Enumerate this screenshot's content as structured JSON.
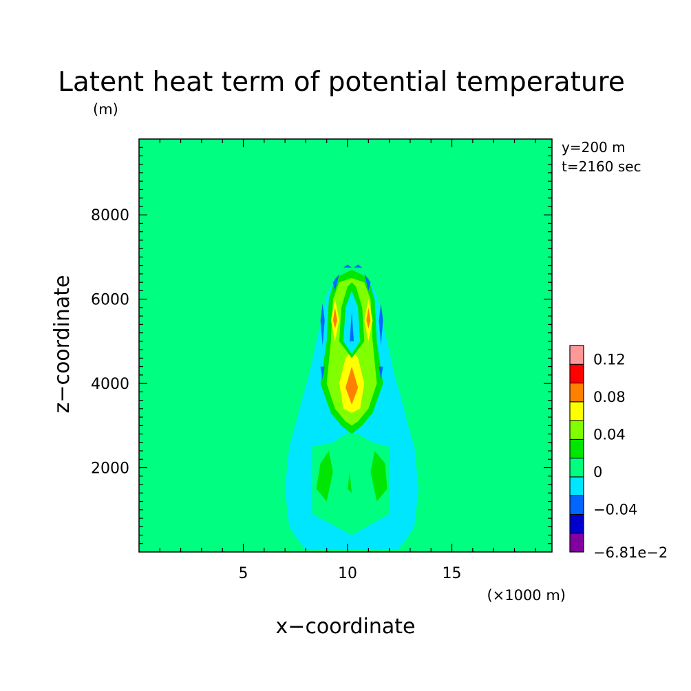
{
  "chart_data": {
    "type": "heatmap",
    "title": "Latent heat term of potential temperature",
    "y_unit": "(m)",
    "xlabel": "x−coordinate",
    "ylabel": "z−coordinate",
    "x_unit": "(×1000 m)",
    "annotations": [
      "y=200 m",
      "t=2160 sec"
    ],
    "xlim": [
      0,
      19.8
    ],
    "ylim": [
      0,
      9800
    ],
    "x_ticks": [
      5,
      10,
      15
    ],
    "x_tick_labels": [
      "5",
      "10",
      "15"
    ],
    "y_ticks": [
      2000,
      4000,
      6000,
      8000
    ],
    "y_tick_labels": [
      "2000",
      "4000",
      "6000",
      "8000"
    ],
    "colorbar": {
      "levels": [
        -0.0681,
        -0.06,
        -0.04,
        -0.02,
        0,
        0.02,
        0.04,
        0.06,
        0.08,
        0.1,
        0.12,
        0.14
      ],
      "colors": [
        "#8000a0",
        "#0000cc",
        "#0066ff",
        "#00e6ff",
        "#00ff80",
        "#00e600",
        "#80ff00",
        "#ffff00",
        "#ff8000",
        "#ff0000",
        "#ff9999"
      ],
      "tick_labels": [
        "−6.81e−2",
        "−0.04",
        "0",
        "0.04",
        "0.08",
        "0.12"
      ]
    },
    "background_level": 0,
    "regions": [
      {
        "level": -0.02,
        "polygon": [
          [
            7.2,
            2.5
          ],
          [
            7.5,
            3.0
          ],
          [
            7.8,
            3.6
          ],
          [
            8.2,
            4.3
          ],
          [
            8.5,
            5.0
          ],
          [
            8.8,
            5.6
          ],
          [
            9.0,
            6.1
          ],
          [
            9.4,
            6.5
          ],
          [
            10.2,
            6.7
          ],
          [
            11.0,
            6.5
          ],
          [
            11.4,
            6.1
          ],
          [
            11.6,
            5.6
          ],
          [
            11.9,
            5.0
          ],
          [
            12.2,
            4.3
          ],
          [
            12.6,
            3.6
          ],
          [
            12.9,
            3.0
          ],
          [
            13.2,
            2.5
          ],
          [
            13.4,
            1.5
          ],
          [
            13.2,
            0.6
          ],
          [
            12.8,
            0.3
          ],
          [
            12.4,
            0.05
          ],
          [
            8.0,
            0.05
          ],
          [
            7.6,
            0.3
          ],
          [
            7.2,
            0.6
          ],
          [
            7.0,
            1.5
          ]
        ]
      },
      {
        "level": 0,
        "polygon": [
          [
            8.3,
            0.9
          ],
          [
            10.2,
            0.4
          ],
          [
            12.0,
            0.9
          ],
          [
            12.0,
            2.5
          ],
          [
            11.2,
            2.6
          ],
          [
            10.5,
            2.8
          ],
          [
            9.9,
            2.8
          ],
          [
            9.3,
            2.6
          ],
          [
            8.3,
            2.5
          ]
        ]
      },
      {
        "level": 0.02,
        "polygon": [
          [
            8.7,
            4.0
          ],
          [
            9.0,
            5.0
          ],
          [
            9.1,
            6.0
          ],
          [
            9.4,
            6.5
          ],
          [
            10.2,
            6.7
          ],
          [
            11.0,
            6.5
          ],
          [
            11.3,
            6.0
          ],
          [
            11.4,
            5.0
          ],
          [
            11.7,
            4.0
          ],
          [
            11.2,
            3.3
          ],
          [
            10.7,
            3.0
          ],
          [
            10.2,
            2.8
          ],
          [
            9.7,
            3.0
          ],
          [
            9.2,
            3.3
          ]
        ]
      },
      {
        "level": 0.04,
        "polygon": [
          [
            9.0,
            4.0
          ],
          [
            9.2,
            5.0
          ],
          [
            9.3,
            6.0
          ],
          [
            9.6,
            6.4
          ],
          [
            10.2,
            6.5
          ],
          [
            10.8,
            6.4
          ],
          [
            11.1,
            6.0
          ],
          [
            11.2,
            5.0
          ],
          [
            11.4,
            4.0
          ],
          [
            11.0,
            3.4
          ],
          [
            10.5,
            3.1
          ],
          [
            10.2,
            3.0
          ],
          [
            9.9,
            3.1
          ],
          [
            9.4,
            3.4
          ]
        ]
      },
      {
        "level": 0.06,
        "polygon": [
          [
            9.6,
            4.0
          ],
          [
            9.9,
            4.6
          ],
          [
            10.2,
            4.8
          ],
          [
            10.5,
            4.6
          ],
          [
            10.8,
            4.0
          ],
          [
            10.6,
            3.4
          ],
          [
            10.2,
            3.3
          ],
          [
            9.8,
            3.4
          ]
        ]
      },
      {
        "level": 0.08,
        "polygon": [
          [
            9.9,
            3.9
          ],
          [
            10.2,
            4.4
          ],
          [
            10.5,
            3.9
          ],
          [
            10.2,
            3.5
          ]
        ]
      },
      {
        "level": 0.06,
        "polygon": [
          [
            9.2,
            5.5
          ],
          [
            9.4,
            6.0
          ],
          [
            9.6,
            5.5
          ],
          [
            9.4,
            5.0
          ]
        ]
      },
      {
        "level": 0.08,
        "polygon": [
          [
            9.3,
            5.5
          ],
          [
            9.4,
            5.8
          ],
          [
            9.5,
            5.5
          ],
          [
            9.4,
            5.3
          ]
        ]
      },
      {
        "level": 0.06,
        "polygon": [
          [
            10.8,
            5.5
          ],
          [
            11.0,
            6.0
          ],
          [
            11.2,
            5.5
          ],
          [
            11.0,
            5.0
          ]
        ]
      },
      {
        "level": 0.08,
        "polygon": [
          [
            10.9,
            5.5
          ],
          [
            11.0,
            5.8
          ],
          [
            11.1,
            5.5
          ],
          [
            11.0,
            5.3
          ]
        ]
      },
      {
        "level": 0.02,
        "polygon": [
          [
            9.6,
            5.0
          ],
          [
            9.7,
            5.8
          ],
          [
            10.0,
            6.3
          ],
          [
            10.2,
            6.4
          ],
          [
            10.4,
            6.3
          ],
          [
            10.7,
            5.8
          ],
          [
            10.8,
            5.0
          ],
          [
            10.2,
            4.6
          ]
        ]
      },
      {
        "level": -0.02,
        "polygon": [
          [
            9.8,
            5.0
          ],
          [
            9.9,
            5.8
          ],
          [
            10.2,
            6.2
          ],
          [
            10.5,
            5.8
          ],
          [
            10.6,
            5.0
          ],
          [
            10.2,
            4.7
          ]
        ]
      },
      {
        "level": -0.04,
        "polygon": [
          [
            10.1,
            5.0
          ],
          [
            10.2,
            5.7
          ],
          [
            10.3,
            5.0
          ]
        ]
      },
      {
        "level": -0.04,
        "polygon": [
          [
            8.7,
            5.5
          ],
          [
            8.8,
            5.9
          ],
          [
            8.9,
            5.5
          ],
          [
            8.8,
            4.9
          ]
        ]
      },
      {
        "level": -0.04,
        "polygon": [
          [
            11.5,
            5.5
          ],
          [
            11.6,
            5.9
          ],
          [
            11.7,
            5.5
          ],
          [
            11.6,
            4.9
          ]
        ]
      },
      {
        "level": -0.04,
        "polygon": [
          [
            8.7,
            4.4
          ],
          [
            8.8,
            4.1
          ],
          [
            8.9,
            4.4
          ]
        ]
      },
      {
        "level": -0.04,
        "polygon": [
          [
            11.5,
            4.4
          ],
          [
            11.6,
            4.1
          ],
          [
            11.7,
            4.4
          ]
        ]
      },
      {
        "level": -0.04,
        "polygon": [
          [
            9.3,
            6.4
          ],
          [
            9.6,
            6.6
          ],
          [
            9.4,
            6.2
          ]
        ]
      },
      {
        "level": -0.04,
        "polygon": [
          [
            11.1,
            6.4
          ],
          [
            10.8,
            6.6
          ],
          [
            11.0,
            6.2
          ]
        ]
      },
      {
        "level": -0.04,
        "polygon": [
          [
            9.8,
            6.75
          ],
          [
            10.0,
            6.82
          ],
          [
            10.2,
            6.75
          ]
        ]
      },
      {
        "level": -0.04,
        "polygon": [
          [
            10.3,
            6.75
          ],
          [
            10.5,
            6.82
          ],
          [
            10.7,
            6.75
          ]
        ]
      },
      {
        "level": 0.02,
        "polygon": [
          [
            8.5,
            1.5
          ],
          [
            8.7,
            2.1
          ],
          [
            9.1,
            2.4
          ],
          [
            9.3,
            1.9
          ],
          [
            9.0,
            1.2
          ]
        ]
      },
      {
        "level": 0.02,
        "polygon": [
          [
            11.1,
            1.9
          ],
          [
            11.3,
            2.4
          ],
          [
            11.8,
            2.1
          ],
          [
            11.9,
            1.5
          ],
          [
            11.4,
            1.2
          ]
        ]
      },
      {
        "level": 0.02,
        "polygon": [
          [
            10.0,
            1.5
          ],
          [
            10.1,
            1.9
          ],
          [
            10.2,
            1.4
          ]
        ]
      }
    ]
  }
}
